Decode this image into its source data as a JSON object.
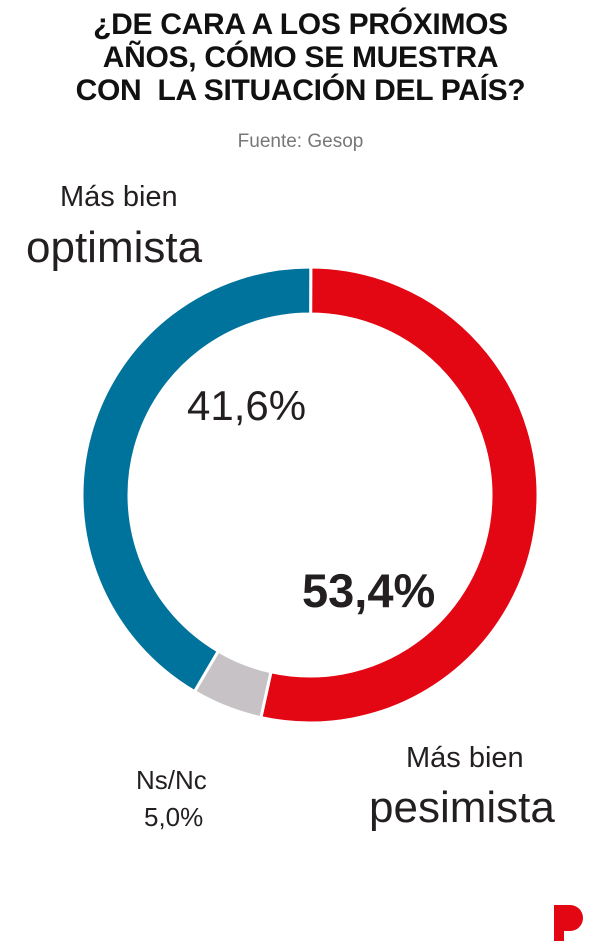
{
  "title_lines": [
    "¿DE CARA A LOS PRÓXIMOS",
    "AÑOS, CÓMO SE MUESTRA",
    "CON  LA SITUACIÓN DEL PAÍS?"
  ],
  "source": "Fuente: Gesop",
  "chart_data": {
    "type": "pie",
    "donut": true,
    "title": "¿DE CARA A LOS PRÓXIMOS AÑOS, CÓMO SE MUESTRA CON LA SITUACIÓN DEL PAÍS?",
    "slices": [
      {
        "name_top": "Más bien",
        "name_main": "pesimista",
        "value": 53.4,
        "label": "53,4%",
        "color": "#e30613"
      },
      {
        "name_top": "Ns/Nc",
        "name_main": "",
        "value": 5.0,
        "label": "5,0%",
        "color": "#c6c2c5"
      },
      {
        "name_top": "Más bien",
        "name_main": "optimista",
        "value": 41.6,
        "label": "41,6%",
        "color": "#00739d"
      }
    ]
  },
  "logo": "P"
}
